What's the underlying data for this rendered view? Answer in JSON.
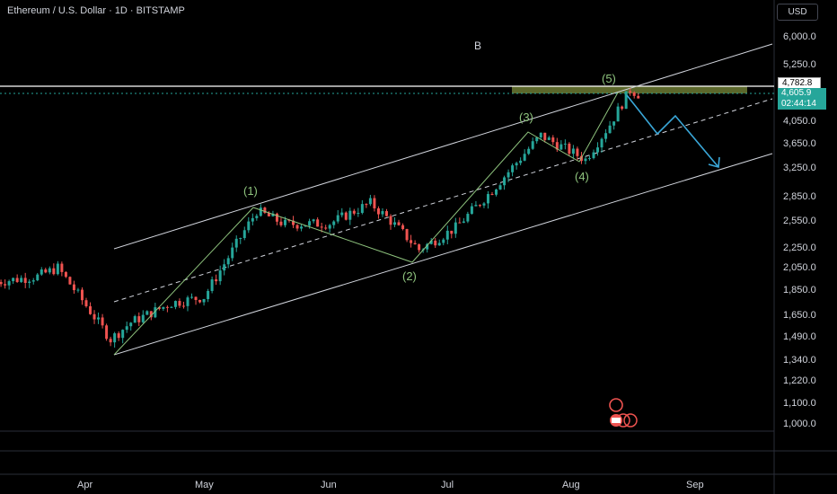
{
  "header": {
    "title": "Ethereum / U.S. Dollar · 1D · BITSTAMP",
    "currency_button": "USD",
    "annotation_b": "B"
  },
  "price_axis": {
    "labels": [
      "6,000.0",
      "5,250.0",
      "4,050.0",
      "3,650.0",
      "3,250.0",
      "2,850.0",
      "2,550.0",
      "2,250.0",
      "2,050.0",
      "1,850.0",
      "1,650.0",
      "1,490.0",
      "1,340.0",
      "1,220.0",
      "1,100.0",
      "1,000.0"
    ],
    "resistance_price": "4,782.8",
    "last_price": "4,605.9",
    "countdown": "02:44:14"
  },
  "time_axis": {
    "labels": [
      "Apr",
      "May",
      "Jun",
      "Jul",
      "Aug",
      "Sep"
    ]
  },
  "wave_labels": [
    "(1)",
    "(2)",
    "(3)",
    "(4)",
    "(5)"
  ],
  "colors": {
    "up": "#26a69a",
    "down": "#ef5350",
    "wave": "#8fc47e",
    "projection": "#3aa7d8",
    "channel": "#d1d4dc",
    "resistance_zone": "#7a8a3a"
  },
  "chart_data": {
    "type": "candlestick",
    "title": "Ethereum / U.S. Dollar · 1D · BITSTAMP",
    "y_scale": "log",
    "ylim": [
      950,
      6400
    ],
    "x_range": [
      "Mar 2025",
      "Sep 2025"
    ],
    "close_series": [
      {
        "date": "Mar 10",
        "close": 1930
      },
      {
        "date": "Mar 20",
        "close": 1980
      },
      {
        "date": "Mar 25",
        "close": 2060
      },
      {
        "date": "Mar 30",
        "close": 1820
      },
      {
        "date": "Apr 7",
        "close": 1480
      },
      {
        "date": "Apr 12",
        "close": 1600
      },
      {
        "date": "Apr 22",
        "close": 1750
      },
      {
        "date": "Apr 30",
        "close": 1800
      },
      {
        "date": "May 8",
        "close": 2300
      },
      {
        "date": "May 13",
        "close": 2680
      },
      {
        "date": "May 20",
        "close": 2520
      },
      {
        "date": "May 31",
        "close": 2530
      },
      {
        "date": "Jun 10",
        "close": 2780
      },
      {
        "date": "Jun 15",
        "close": 2560
      },
      {
        "date": "Jun 22",
        "close": 2240
      },
      {
        "date": "Jul 1",
        "close": 2480
      },
      {
        "date": "Jul 10",
        "close": 2950
      },
      {
        "date": "Jul 20",
        "close": 3650
      },
      {
        "date": "Jul 22",
        "close": 3800
      },
      {
        "date": "Aug 2",
        "close": 3400
      },
      {
        "date": "Aug 8",
        "close": 4000
      },
      {
        "date": "Aug 13",
        "close": 4700
      },
      {
        "date": "Aug 15",
        "close": 4605.9
      }
    ],
    "resistance_level": 4782.8,
    "elliott_waves": [
      {
        "label": "(1)",
        "date": "May 13",
        "price": 2750
      },
      {
        "label": "(2)",
        "date": "Jun 22",
        "price": 2110
      },
      {
        "label": "(3)",
        "date": "Jul 22",
        "price": 3900
      },
      {
        "label": "(4)",
        "date": "Aug 2",
        "price": 3380
      },
      {
        "label": "(5)",
        "date": "Aug 14",
        "price": 4780
      }
    ],
    "projection_path": [
      {
        "date": "Aug 15",
        "price": 4700
      },
      {
        "date": "Aug 25",
        "price": 3800
      },
      {
        "date": "Aug 31",
        "price": 4150
      },
      {
        "date": "Sep 11",
        "price": 3200
      }
    ]
  }
}
